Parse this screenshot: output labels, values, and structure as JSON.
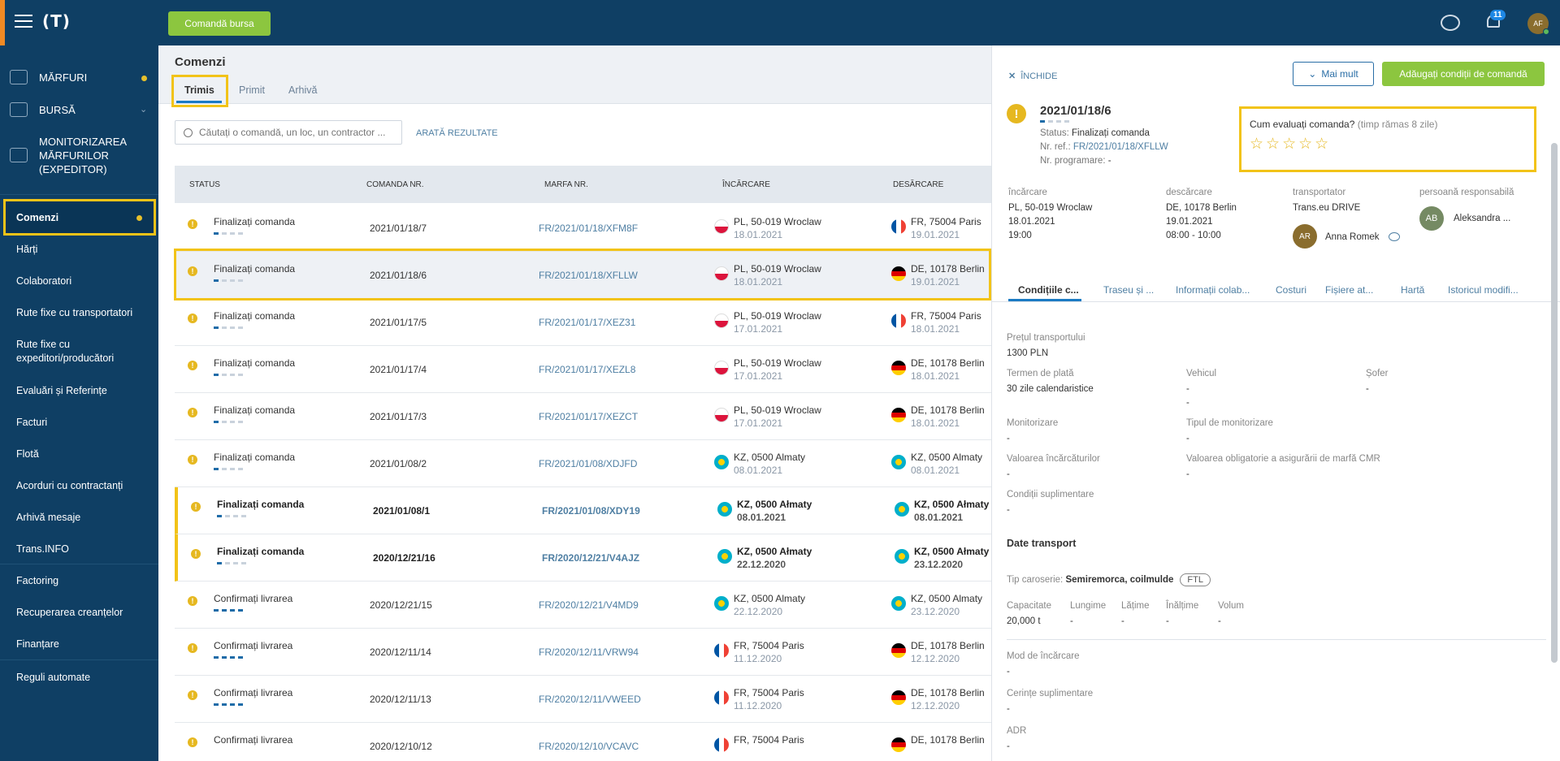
{
  "topbar": {
    "logo": "(T)",
    "exchange_order_btn": "Comandă bursa",
    "notifications_count": "11",
    "user_initials": "AF"
  },
  "sidebar": {
    "main": [
      {
        "label": "MĂRFURI"
      },
      {
        "label": "BURSĂ"
      },
      {
        "label": "MONITORIZAREA MĂRFURILOR (EXPEDITOR)"
      }
    ],
    "items": [
      {
        "label": "Comenzi"
      },
      {
        "label": "Hărți"
      },
      {
        "label": "Colaboratori"
      },
      {
        "label": "Rute fixe cu transportatori"
      },
      {
        "label": "Rute fixe cu expeditori/producători"
      },
      {
        "label": "Evaluări și Referințe"
      },
      {
        "label": "Facturi"
      },
      {
        "label": "Flotă"
      },
      {
        "label": "Acorduri cu contractanți"
      },
      {
        "label": "Arhivă mesaje"
      },
      {
        "label": "Trans.INFO"
      },
      {
        "label": "Factoring"
      },
      {
        "label": "Recuperarea creanțelor"
      },
      {
        "label": "Finanțare"
      },
      {
        "label": "Reguli automate"
      }
    ]
  },
  "main": {
    "title": "Comenzi",
    "tabs": [
      "Trimis",
      "Primit",
      "Arhivă"
    ],
    "search_placeholder": "Căutați o comandă, un loc, un contractor ...",
    "show_results": "ARATĂ REZULTATE",
    "columns": [
      "STATUS",
      "COMANDA NR.",
      "MARFA NR.",
      "ÎNCĂRCARE",
      "DESĂRCARE"
    ],
    "rows": [
      {
        "status": "Finalizați comanda",
        "no": "2021/01/18/7",
        "ref": "FR/2021/01/18/XFM8F",
        "load": "PL, 50-019 Wroclaw",
        "load_date": "18.01.2021",
        "unload": "FR, 75004 Paris",
        "unload_date": "19.01.2021"
      },
      {
        "status": "Finalizați comanda",
        "no": "2021/01/18/6",
        "ref": "FR/2021/01/18/XFLLW",
        "load": "PL, 50-019 Wroclaw",
        "load_date": "18.01.2021",
        "unload": "DE, 10178 Berlin",
        "unload_date": "19.01.2021"
      },
      {
        "status": "Finalizați comanda",
        "no": "2021/01/17/5",
        "ref": "FR/2021/01/17/XEZ31",
        "load": "PL, 50-019 Wroclaw",
        "load_date": "17.01.2021",
        "unload": "FR, 75004 Paris",
        "unload_date": "18.01.2021"
      },
      {
        "status": "Finalizați comanda",
        "no": "2021/01/17/4",
        "ref": "FR/2021/01/17/XEZL8",
        "load": "PL, 50-019 Wroclaw",
        "load_date": "17.01.2021",
        "unload": "DE, 10178 Berlin",
        "unload_date": "18.01.2021"
      },
      {
        "status": "Finalizați comanda",
        "no": "2021/01/17/3",
        "ref": "FR/2021/01/17/XEZCT",
        "load": "PL, 50-019 Wroclaw",
        "load_date": "17.01.2021",
        "unload": "DE, 10178 Berlin",
        "unload_date": "18.01.2021"
      },
      {
        "status": "Finalizați comanda",
        "no": "2021/01/08/2",
        "ref": "FR/2021/01/08/XDJFD",
        "load": "KZ, 0500 Almaty",
        "load_date": "08.01.2021",
        "unload": "KZ, 0500 Almaty",
        "unload_date": "08.01.2021"
      },
      {
        "status": "Finalizați comanda",
        "no": "2021/01/08/1",
        "ref": "FR/2021/01/08/XDY19",
        "load": "KZ, 0500 Ałmaty",
        "load_date": "08.01.2021",
        "unload": "KZ, 0500 Ałmaty",
        "unload_date": "08.01.2021"
      },
      {
        "status": "Finalizați comanda",
        "no": "2020/12/21/16",
        "ref": "FR/2020/12/21/V4AJZ",
        "load": "KZ, 0500 Ałmaty",
        "load_date": "22.12.2020",
        "unload": "KZ, 0500 Ałmaty",
        "unload_date": "23.12.2020"
      },
      {
        "status": "Confirmați livrarea",
        "no": "2020/12/21/15",
        "ref": "FR/2020/12/21/V4MD9",
        "load": "KZ, 0500 Almaty",
        "load_date": "22.12.2020",
        "unload": "KZ, 0500 Almaty",
        "unload_date": "23.12.2020"
      },
      {
        "status": "Confirmați livrarea",
        "no": "2020/12/11/14",
        "ref": "FR/2020/12/11/VRW94",
        "load": "FR, 75004 Paris",
        "load_date": "11.12.2020",
        "unload": "DE, 10178 Berlin",
        "unload_date": "12.12.2020"
      },
      {
        "status": "Confirmați livrarea",
        "no": "2020/12/11/13",
        "ref": "FR/2020/12/11/VWEED",
        "load": "FR, 75004 Paris",
        "load_date": "11.12.2020",
        "unload": "DE, 10178 Berlin",
        "unload_date": "12.12.2020"
      },
      {
        "status": "Confirmați livrarea",
        "no": "2020/12/10/12",
        "ref": "FR/2020/12/10/VCAVC",
        "load": "FR, 75004 Paris",
        "load_date": "",
        "unload": "DE, 10178 Berlin",
        "unload_date": ""
      }
    ]
  },
  "panel": {
    "close": "ÎNCHIDE",
    "more_btn": "Mai mult",
    "add_btn": "Adăugați condiții de comandă",
    "order_no": "2021/01/18/6",
    "status_label": "Status:",
    "status_value": "Finalizați comanda",
    "ref_label": "Nr. ref.:",
    "ref_value": "FR/2021/01/18/XFLLW",
    "sched_label": "Nr. programare:",
    "sched_value": "-",
    "rating_q": "Cum evaluați comanda?",
    "rating_time": "(timp rămas 8 zile)",
    "stars": "☆☆☆☆☆",
    "cols": {
      "load_h": "încărcare",
      "load_place": "PL, 50-019 Wroclaw",
      "load_date": "18.01.2021",
      "load_time": "19:00",
      "unload_h": "descărcare",
      "unload_place": "DE, 10178 Berlin",
      "unload_date": "19.01.2021",
      "unload_time": "08:00 - 10:00",
      "carrier_h": "transportator",
      "carrier": "Trans.eu DRIVE",
      "carrier_av": "AR",
      "driver": "Anna Romek",
      "resp_h": "persoană responsabilă",
      "resp_av": "AB",
      "resp": "Aleksandra ..."
    },
    "tabs": [
      "Condițiile c...",
      "Traseu și ...",
      "Informații colab...",
      "Costuri",
      "Fișiere at...",
      "Hartă",
      "Istoricul modifi..."
    ],
    "fields": {
      "price_l": "Prețul transportului",
      "price_v": "1300 PLN",
      "term_l": "Termen de plată",
      "term_v": "30 zile calendaristice",
      "vehicle_l": "Vehicul",
      "vehicle_v1": "-",
      "vehicle_v2": "-",
      "driver_l": "Șofer",
      "driver_v": "-",
      "mon_l": "Monitorizare",
      "mon_v": "-",
      "mon_type_l": "Tipul de monitorizare",
      "mon_type_v": "-",
      "cargo_val_l": "Valoarea încărcăturilor",
      "cargo_val_v": "-",
      "cmr_l": "Valoarea obligatorie a asigurării de marfă CMR",
      "cmr_v": "-",
      "extra_l": "Condiții suplimentare",
      "extra_v": "-"
    },
    "transport": {
      "title": "Date transport",
      "body_l": "Tip caroserie:",
      "body_v": "Semiremorca, coilmulde",
      "ftl": "FTL",
      "capacity_l": "Capacitate",
      "capacity_v": "20,000 t",
      "length_l": "Lungime",
      "length_v": "-",
      "width_l": "Lățime",
      "width_v": "-",
      "height_l": "Înălțime",
      "height_v": "-",
      "volume_l": "Volum",
      "volume_v": "-",
      "loadmode_l": "Mod de încărcare",
      "loadmode_v": "-",
      "req_l": "Cerințe suplimentare",
      "req_v": "-",
      "adr_l": "ADR",
      "adr_v": "-"
    }
  }
}
